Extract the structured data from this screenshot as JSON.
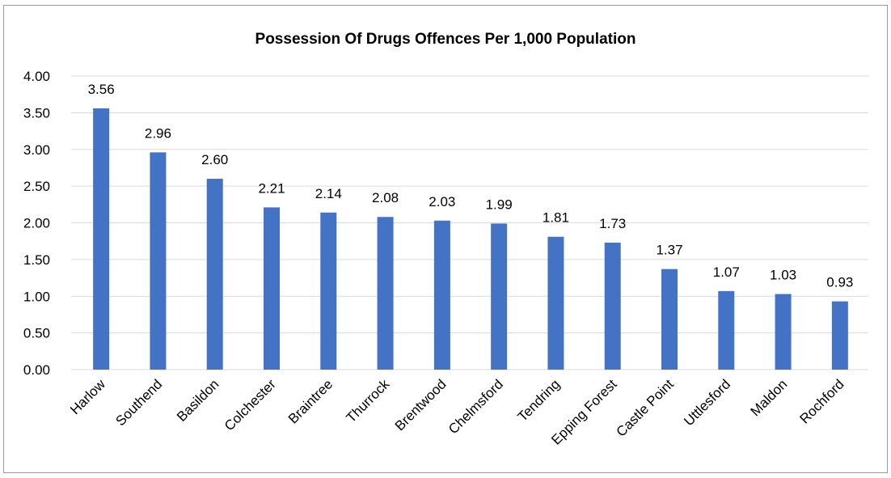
{
  "chart_data": {
    "type": "bar",
    "title": "Possession Of Drugs Offences Per 1,000 Population",
    "categories": [
      "Harlow",
      "Southend",
      "Basildon",
      "Colchester",
      "Braintree",
      "Thurrock",
      "Brentwood",
      "Chelmsford",
      "Tendring",
      "Epping Forest",
      "Castle Point",
      "Uttlesford",
      "Maldon",
      "Rochford"
    ],
    "values": [
      3.56,
      2.96,
      2.6,
      2.21,
      2.14,
      2.08,
      2.03,
      1.99,
      1.81,
      1.73,
      1.37,
      1.07,
      1.03,
      0.93
    ],
    "data_labels": [
      "3.56",
      "2.96",
      "2.60",
      "2.21",
      "2.14",
      "2.08",
      "2.03",
      "1.99",
      "1.81",
      "1.73",
      "1.37",
      "1.07",
      "1.03",
      "0.93"
    ],
    "y_ticks": [
      "0.00",
      "0.50",
      "1.00",
      "1.50",
      "2.00",
      "2.50",
      "3.00",
      "3.50",
      "4.00"
    ],
    "ylim": [
      0,
      4
    ],
    "xlabel": "",
    "ylabel": "",
    "grid": true,
    "legend": "none",
    "bar_color": "#4472c4",
    "grid_color": "#d9d9d9"
  }
}
